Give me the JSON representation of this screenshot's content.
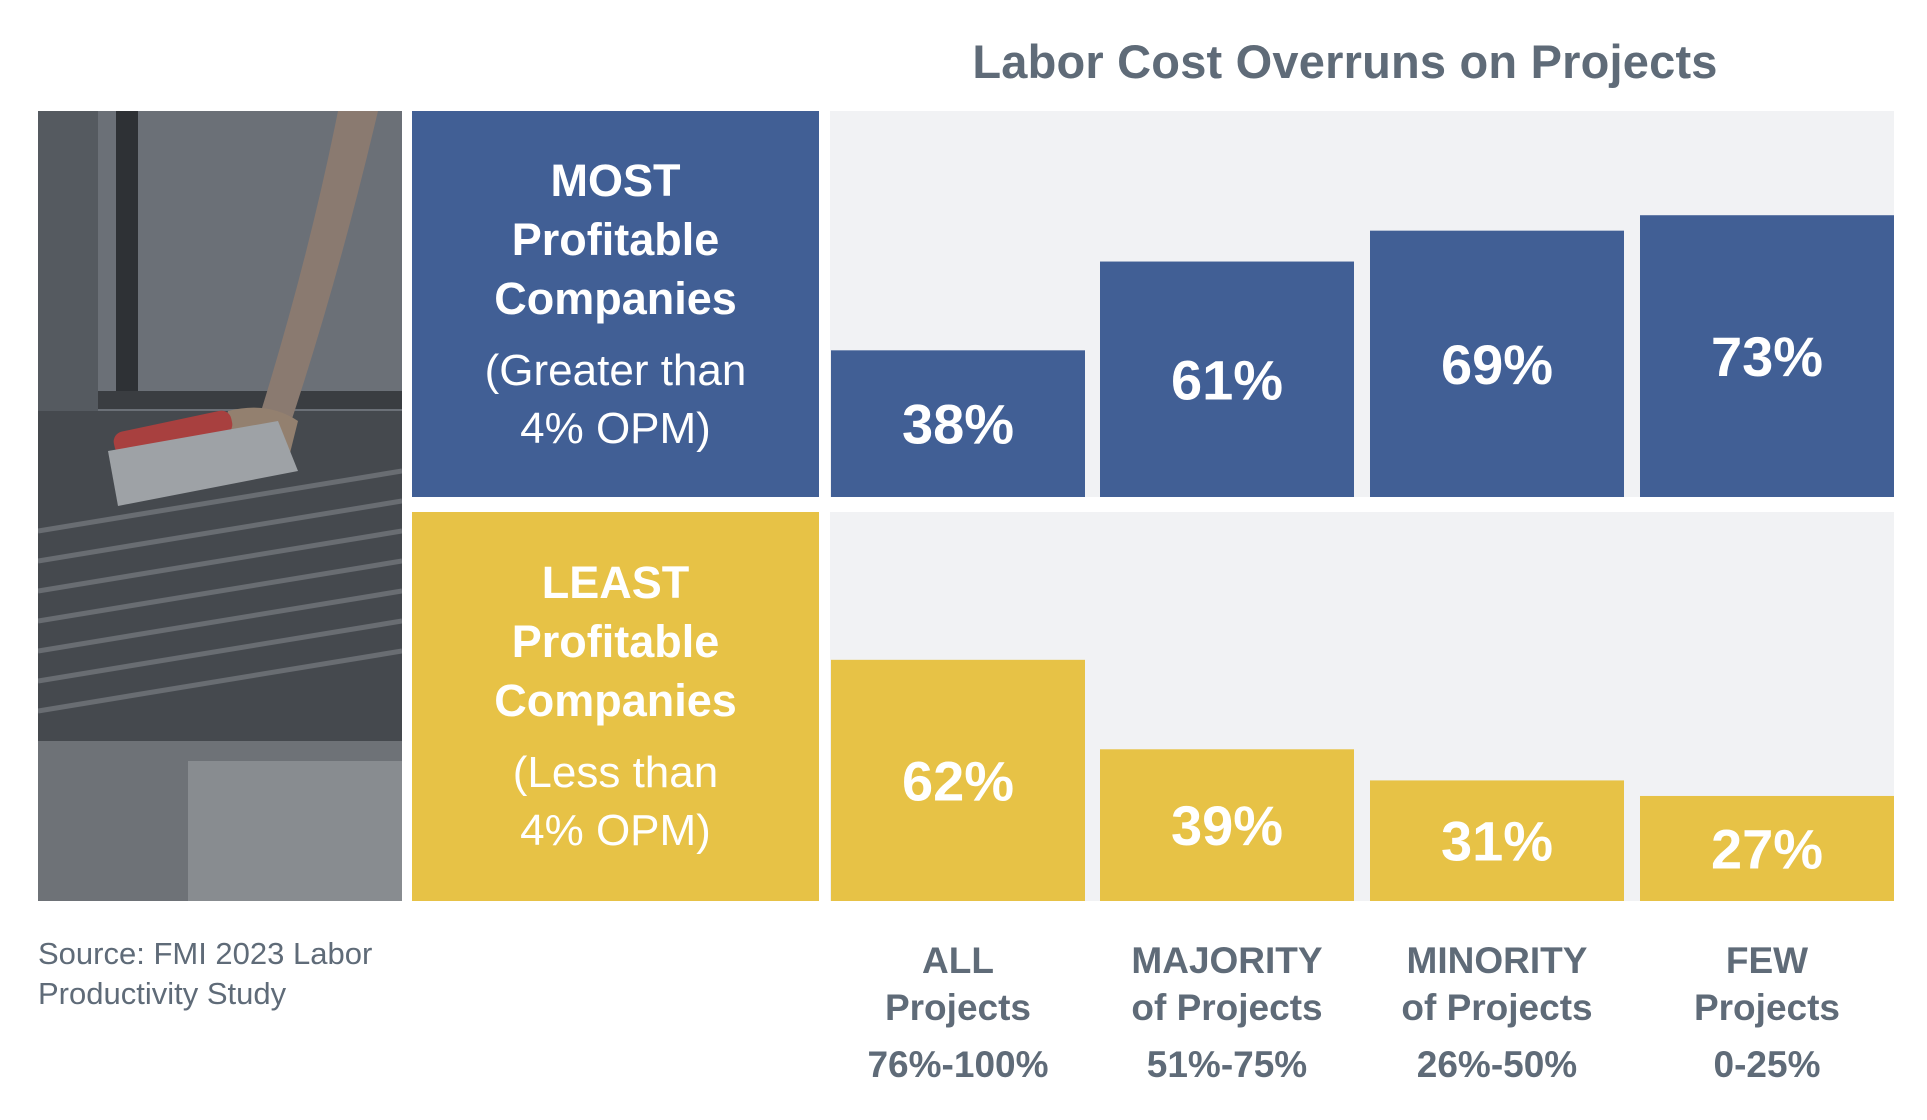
{
  "chart_data": {
    "type": "bar",
    "title": "Labor Cost Overruns on Projects",
    "categories": [
      {
        "name": "ALL\nProjects",
        "range": "76%-100%"
      },
      {
        "name": "MAJORITY\nof Projects",
        "range": "51%-75%"
      },
      {
        "name": "MINORITY\nof Projects",
        "range": "26%-50%"
      },
      {
        "name": "FEW\nProjects",
        "range": "0-25%"
      }
    ],
    "series": [
      {
        "name": "MOST\nProfitable\nCompanies",
        "subtitle": "(Greater than\n4% OPM)",
        "values": [
          38,
          61,
          69,
          73
        ],
        "labels": [
          "38%",
          "61%",
          "69%",
          "73%"
        ],
        "color": "#415f95"
      },
      {
        "name": "LEAST\nProfitable\nCompanies",
        "subtitle": "(Less than\n4% OPM)",
        "values": [
          62,
          39,
          31,
          27
        ],
        "labels": [
          "62%",
          "39%",
          "31%",
          "27%"
        ],
        "color": "#e7c246"
      }
    ],
    "ylim": [
      0,
      100
    ],
    "grid": false
  },
  "source": "Source: FMI 2023 Labor\nProductivity Study",
  "colors": {
    "panel_background": "#f1f2f4",
    "text": "#5f6b78",
    "label_text": "#ffffff"
  }
}
